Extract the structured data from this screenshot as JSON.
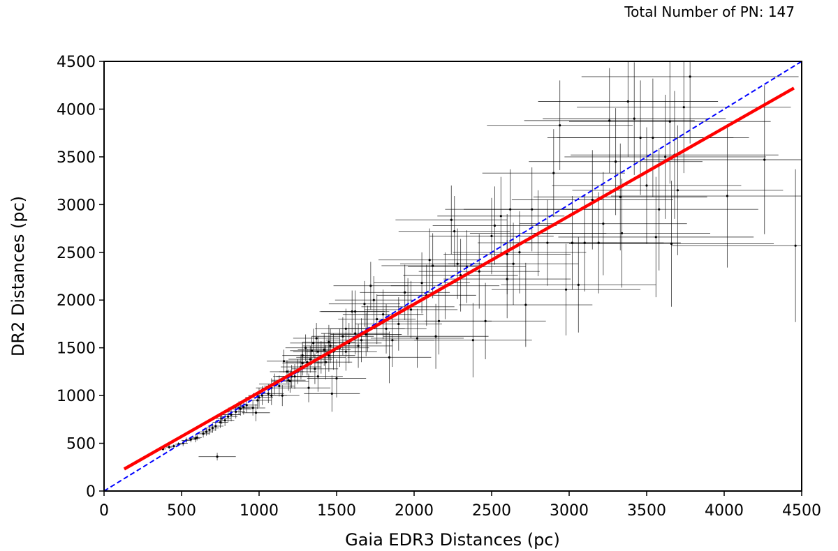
{
  "chart_data": {
    "type": "scatter",
    "annotation": "Total Number of PN: 147",
    "xlabel": "Gaia EDR3 Distances (pc)",
    "ylabel": "DR2 Distances (pc)",
    "xlim": [
      0,
      4500
    ],
    "ylim": [
      0,
      4500
    ],
    "x_ticks": [
      "0",
      "500",
      "1000",
      "1500",
      "2000",
      "2500",
      "3000",
      "3500",
      "4000",
      "4500"
    ],
    "y_ticks": [
      "0",
      "500",
      "1000",
      "1500",
      "2000",
      "2500",
      "3000",
      "3500",
      "4000",
      "4500"
    ],
    "grid": false,
    "lines": [
      {
        "style": "dashed",
        "color": "#0000ff",
        "points": [
          [
            0,
            0
          ],
          [
            4500,
            4500
          ]
        ]
      },
      {
        "style": "solid",
        "color": "#ff0000",
        "points": [
          [
            130,
            230
          ],
          [
            4450,
            4220
          ]
        ]
      }
    ],
    "points_color": "#000000",
    "points": [
      [
        380,
        440,
        20,
        20
      ],
      [
        420,
        460,
        20,
        20
      ],
      [
        450,
        470,
        20,
        20
      ],
      [
        480,
        490,
        20,
        20
      ],
      [
        510,
        500,
        30,
        30
      ],
      [
        560,
        540,
        30,
        30
      ],
      [
        590,
        550,
        30,
        40
      ],
      [
        640,
        600,
        40,
        40
      ],
      [
        680,
        640,
        40,
        50
      ],
      [
        700,
        660,
        40,
        50
      ],
      [
        720,
        680,
        50,
        50
      ],
      [
        730,
        360,
        120,
        40
      ],
      [
        750,
        720,
        50,
        60
      ],
      [
        780,
        740,
        60,
        60
      ],
      [
        800,
        780,
        60,
        60
      ],
      [
        820,
        800,
        60,
        70
      ],
      [
        850,
        830,
        60,
        70
      ],
      [
        880,
        860,
        70,
        70
      ],
      [
        900,
        880,
        70,
        80
      ],
      [
        920,
        900,
        70,
        80
      ],
      [
        960,
        870,
        80,
        80
      ],
      [
        980,
        820,
        90,
        90
      ],
      [
        990,
        950,
        90,
        90
      ],
      [
        1000,
        980,
        90,
        100
      ],
      [
        1020,
        1000,
        90,
        100
      ],
      [
        1060,
        1020,
        100,
        100
      ],
      [
        1080,
        1080,
        100,
        100
      ],
      [
        1100,
        1120,
        100,
        110
      ],
      [
        1130,
        1100,
        100,
        110
      ],
      [
        1150,
        1000,
        110,
        110
      ],
      [
        1160,
        1360,
        110,
        120
      ],
      [
        1180,
        1250,
        110,
        120
      ],
      [
        1200,
        1150,
        120,
        120
      ],
      [
        1230,
        1200,
        120,
        130
      ],
      [
        1250,
        1250,
        120,
        130
      ],
      [
        1270,
        1300,
        130,
        130
      ],
      [
        1280,
        1420,
        130,
        140
      ],
      [
        1300,
        1500,
        130,
        140
      ],
      [
        1310,
        1350,
        140,
        140
      ],
      [
        1320,
        1080,
        140,
        150
      ],
      [
        1340,
        1470,
        140,
        150
      ],
      [
        1350,
        1550,
        150,
        150
      ],
      [
        1360,
        1280,
        150,
        160
      ],
      [
        1370,
        1600,
        150,
        160
      ],
      [
        1380,
        1200,
        160,
        160
      ],
      [
        1400,
        1400,
        160,
        170
      ],
      [
        1420,
        1480,
        170,
        170
      ],
      [
        1430,
        1350,
        170,
        180
      ],
      [
        1450,
        1560,
        170,
        180
      ],
      [
        1460,
        1520,
        180,
        180
      ],
      [
        1470,
        1020,
        180,
        190
      ],
      [
        1480,
        1460,
        180,
        190
      ],
      [
        1500,
        1180,
        190,
        200
      ],
      [
        1520,
        1500,
        190,
        200
      ],
      [
        1540,
        1620,
        200,
        200
      ],
      [
        1560,
        1700,
        200,
        210
      ],
      [
        1580,
        1550,
        210,
        210
      ],
      [
        1600,
        1880,
        210,
        220
      ],
      [
        1620,
        1650,
        220,
        220
      ],
      [
        1640,
        1520,
        220,
        230
      ],
      [
        1660,
        1580,
        230,
        230
      ],
      [
        1680,
        1960,
        230,
        240
      ],
      [
        1700,
        1700,
        240,
        240
      ],
      [
        1720,
        2150,
        240,
        250
      ],
      [
        1740,
        2000,
        250,
        250
      ],
      [
        1760,
        1800,
        250,
        260
      ],
      [
        1800,
        1850,
        260,
        260
      ],
      [
        1840,
        1400,
        270,
        270
      ],
      [
        1860,
        1580,
        270,
        280
      ],
      [
        1900,
        1750,
        280,
        280
      ],
      [
        1940,
        2080,
        290,
        290
      ],
      [
        1980,
        1900,
        300,
        300
      ],
      [
        2020,
        1600,
        300,
        310
      ],
      [
        2050,
        2180,
        310,
        320
      ],
      [
        2080,
        2050,
        320,
        320
      ],
      [
        2100,
        2420,
        330,
        330
      ],
      [
        2120,
        2360,
        330,
        340
      ],
      [
        2140,
        1620,
        340,
        340
      ],
      [
        2160,
        1780,
        340,
        350
      ],
      [
        2200,
        2150,
        350,
        350
      ],
      [
        2240,
        2840,
        360,
        360
      ],
      [
        2260,
        2720,
        360,
        370
      ],
      [
        2280,
        2380,
        370,
        370
      ],
      [
        2300,
        2260,
        370,
        380
      ],
      [
        2340,
        2350,
        380,
        380
      ],
      [
        2380,
        1580,
        380,
        390
      ],
      [
        2420,
        2300,
        390,
        390
      ],
      [
        2460,
        1780,
        390,
        400
      ],
      [
        2500,
        2670,
        400,
        400
      ],
      [
        2520,
        2780,
        400,
        410
      ],
      [
        2560,
        2880,
        410,
        410
      ],
      [
        2600,
        2480,
        410,
        420
      ],
      [
        2620,
        2950,
        420,
        420
      ],
      [
        2640,
        2380,
        420,
        430
      ],
      [
        2680,
        2500,
        430,
        430
      ],
      [
        2720,
        1950,
        430,
        440
      ],
      [
        2760,
        2950,
        440,
        440
      ],
      [
        2800,
        2700,
        440,
        450
      ],
      [
        2860,
        2600,
        450,
        450
      ],
      [
        2900,
        3330,
        460,
        460
      ],
      [
        2940,
        3830,
        470,
        470
      ],
      [
        2980,
        2110,
        480,
        480
      ],
      [
        3020,
        2600,
        490,
        490
      ],
      [
        3060,
        2160,
        500,
        500
      ],
      [
        3100,
        2600,
        510,
        510
      ],
      [
        3150,
        3050,
        520,
        520
      ],
      [
        3190,
        2600,
        530,
        530
      ],
      [
        3220,
        2800,
        540,
        540
      ],
      [
        3260,
        3880,
        550,
        550
      ],
      [
        3300,
        3450,
        560,
        560
      ],
      [
        3340,
        2700,
        570,
        570
      ],
      [
        3380,
        4080,
        580,
        580
      ],
      [
        3420,
        3900,
        590,
        590
      ],
      [
        3460,
        3700,
        600,
        600
      ],
      [
        3500,
        3200,
        610,
        610
      ],
      [
        3540,
        3700,
        620,
        620
      ],
      [
        3560,
        2660,
        630,
        630
      ],
      [
        3580,
        2950,
        640,
        640
      ],
      [
        3620,
        3500,
        650,
        650
      ],
      [
        3660,
        2590,
        660,
        660
      ],
      [
        3680,
        3520,
        670,
        670
      ],
      [
        3700,
        3150,
        680,
        680
      ],
      [
        3740,
        4020,
        690,
        690
      ],
      [
        3780,
        4340,
        700,
        700
      ],
      [
        4020,
        3090,
        750,
        750
      ],
      [
        4260,
        3470,
        780,
        780
      ],
      [
        4460,
        2570,
        800,
        800
      ],
      [
        3330,
        3080,
        560,
        560
      ],
      [
        3650,
        3870,
        650,
        650
      ],
      [
        2600,
        2220,
        410,
        410
      ],
      [
        1620,
        1880,
        220,
        220
      ],
      [
        1380,
        1460,
        160,
        160
      ],
      [
        1280,
        1340,
        130,
        130
      ],
      [
        1190,
        1160,
        110,
        110
      ],
      [
        1080,
        1000,
        100,
        100
      ],
      [
        870,
        870,
        70,
        70
      ],
      [
        760,
        760,
        60,
        60
      ],
      [
        660,
        620,
        40,
        40
      ],
      [
        600,
        560,
        30,
        30
      ],
      [
        530,
        530,
        30,
        30
      ],
      [
        1210,
        1200,
        120,
        120
      ],
      [
        1330,
        1380,
        140,
        140
      ],
      [
        1450,
        1420,
        170,
        170
      ],
      [
        1560,
        1460,
        200,
        200
      ],
      [
        1690,
        1640,
        230,
        230
      ],
      [
        1820,
        1700,
        260,
        260
      ],
      [
        1960,
        1930,
        300,
        300
      ]
    ]
  }
}
